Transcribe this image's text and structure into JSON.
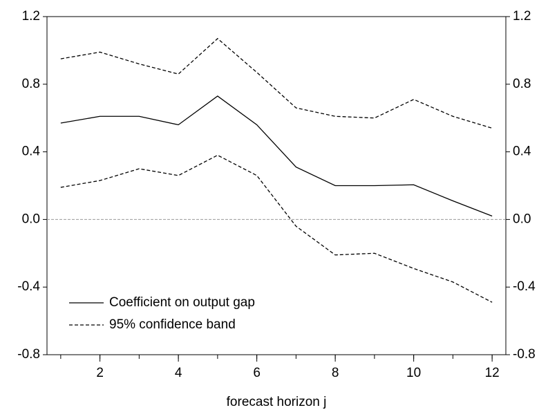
{
  "chart_data": {
    "type": "line",
    "x_label": "forecast horizon j",
    "x": [
      1,
      2,
      3,
      4,
      5,
      6,
      7,
      8,
      9,
      10,
      11,
      12
    ],
    "series": [
      {
        "name": "Coefficient on output gap",
        "color": "#000000",
        "dashed": false,
        "values": [
          0.57,
          0.61,
          0.61,
          0.56,
          0.73,
          0.56,
          0.31,
          0.2,
          0.2,
          0.205,
          0.11,
          0.02
        ]
      },
      {
        "name": "95% confidence band",
        "color": "#000000",
        "dashed": true,
        "values": [
          0.95,
          0.99,
          0.92,
          0.86,
          1.07,
          0.87,
          0.66,
          0.61,
          0.6,
          0.71,
          0.61,
          0.54
        ],
        "lower": [
          0.19,
          0.23,
          0.3,
          0.26,
          0.38,
          0.26,
          -0.04,
          -0.21,
          -0.2,
          -0.29,
          -0.37,
          -0.49
        ]
      }
    ],
    "xlim": [
      0.65,
      12.35
    ],
    "xticks": [
      2,
      4,
      6,
      8,
      10,
      12
    ],
    "x_minor_ticks": [
      1,
      2,
      3,
      4,
      5,
      6,
      7,
      8,
      9,
      10,
      11,
      12
    ],
    "ylim": [
      -0.8,
      1.2
    ],
    "yticks": [
      1.2,
      0.8,
      0.4,
      {
        "value": 0,
        "label": "0.0"
      },
      -0.4,
      -0.8
    ],
    "y2lim": [
      -0.8,
      1.2
    ],
    "y2ticks": [
      1.2,
      0.8,
      0.4,
      {
        "value": 0,
        "label": "0.0"
      },
      -0.4,
      -0.8
    ],
    "zero_line": true,
    "legend": "lower-left"
  }
}
